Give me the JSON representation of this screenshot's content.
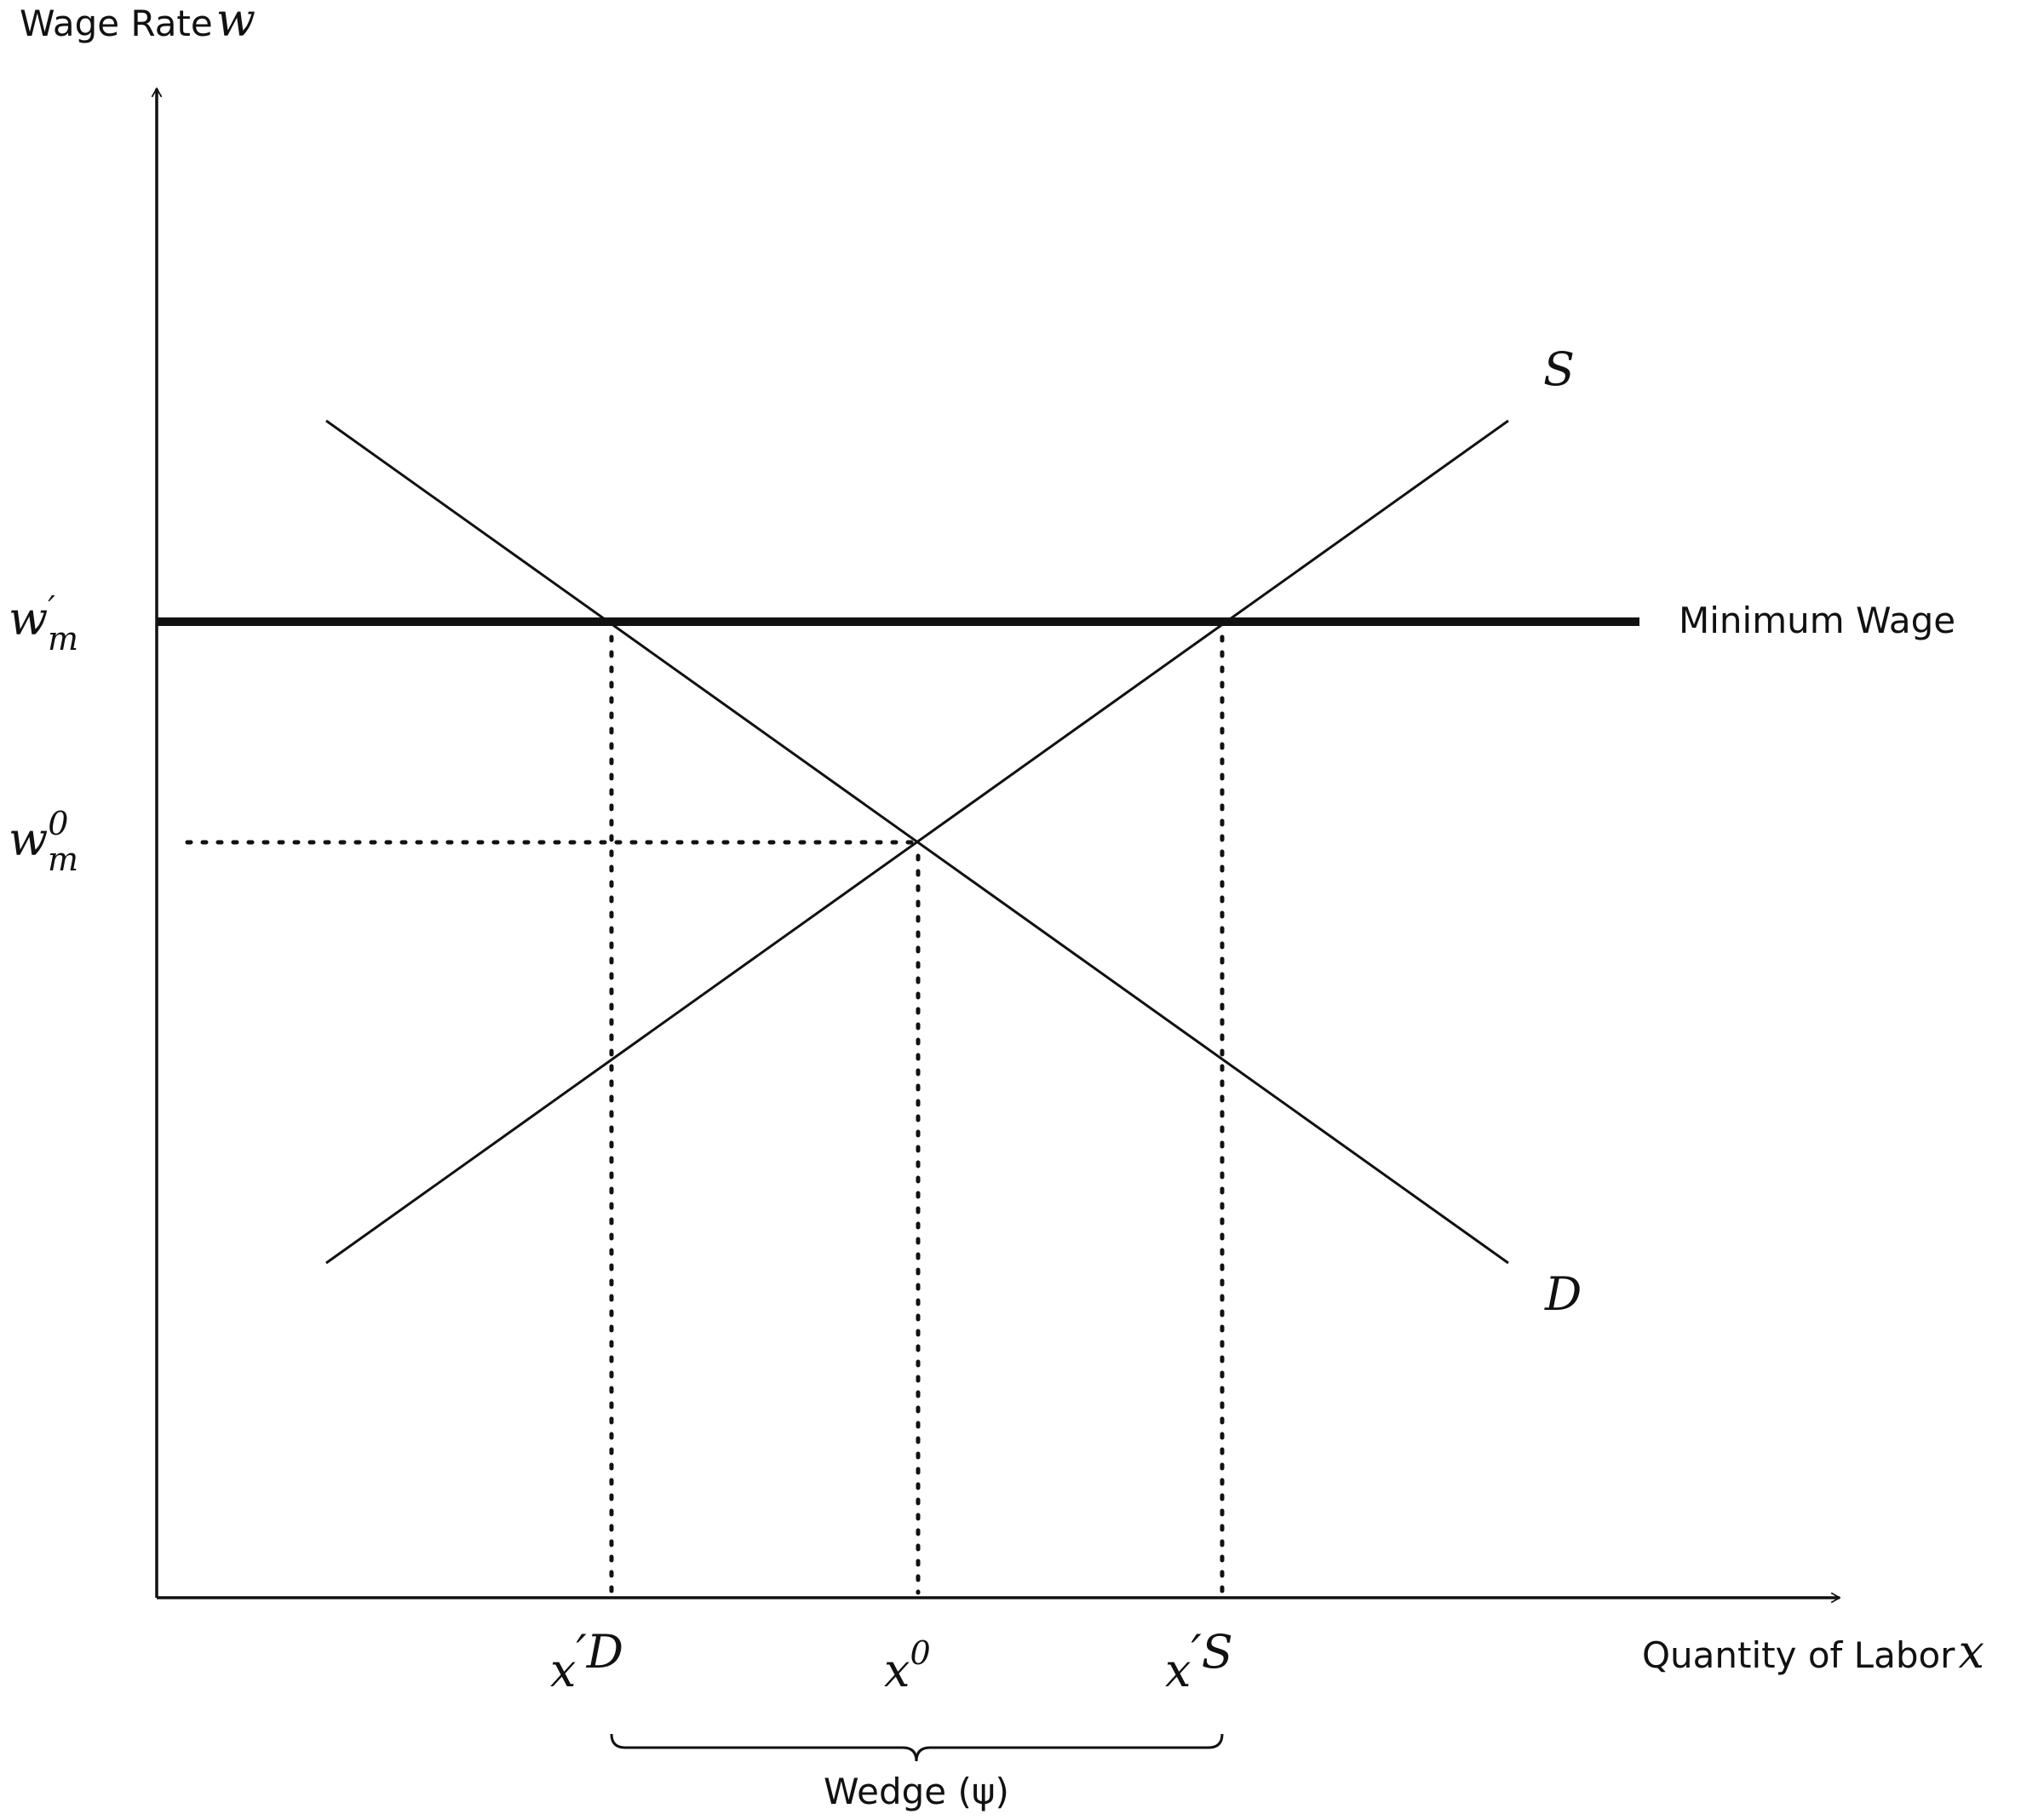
{
  "axes": {
    "y_label": "Wage Rate",
    "y_symbol": "w",
    "x_label": "Quantity of Labor",
    "x_symbol": "x"
  },
  "curves": {
    "supply": "S",
    "demand": "D",
    "minimum_wage": "Minimum Wage"
  },
  "y_marks": [
    {
      "base": "w",
      "sup": "′",
      "sub": "m"
    },
    {
      "base": "w",
      "sup": "0",
      "sub": "m"
    }
  ],
  "x_marks": [
    {
      "base": "x",
      "sup": "′D"
    },
    {
      "base": "x",
      "sup": "0"
    },
    {
      "base": "x",
      "sup": "′S"
    }
  ],
  "wedge": "Wedge (ψ)"
}
